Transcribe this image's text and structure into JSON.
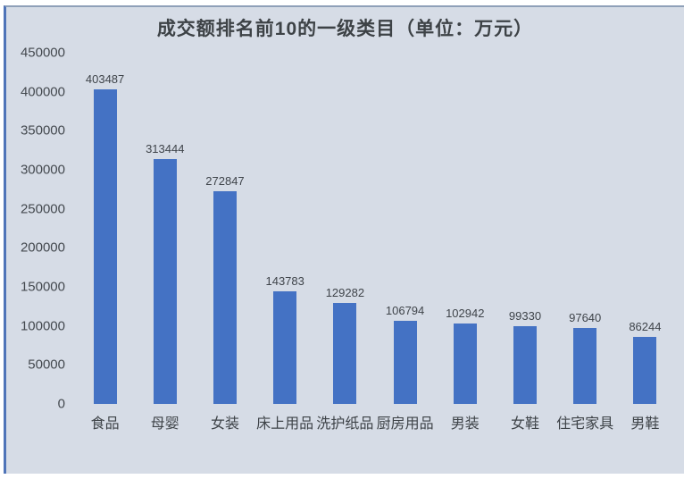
{
  "page": {
    "background": "#FFFFFF"
  },
  "panel": {
    "background": "#D6DCE6",
    "border_left_color": "#4F74B8",
    "border_top_color": "#8FA0B8"
  },
  "chart_data": {
    "type": "bar",
    "title": "成交额排名前10的一级类目（单位：万元）",
    "categories": [
      "食品",
      "母婴",
      "女装",
      "床上用品",
      "洗护纸品",
      "厨房用品",
      "男装",
      "女鞋",
      "住宅家具",
      "男鞋"
    ],
    "values": [
      403487,
      313444,
      272847,
      143783,
      129282,
      106794,
      102942,
      99330,
      97640,
      86244
    ],
    "data_labels": [
      "403487",
      "313444",
      "272847",
      "143783",
      "129282",
      "106794",
      "102942",
      "99330",
      "97640",
      "86244"
    ],
    "xlabel": "",
    "ylabel": "",
    "ylim": [
      0,
      450000
    ],
    "yticks": [
      450000,
      400000,
      350000,
      300000,
      250000,
      200000,
      150000,
      100000,
      50000,
      0
    ],
    "ytick_labels": [
      "450000",
      "400000",
      "350000",
      "300000",
      "250000",
      "200000",
      "150000",
      "100000",
      "50000",
      "0"
    ],
    "grid": false,
    "legend": false,
    "data_labels_shown": true,
    "bar_color": "#4472C4",
    "text_color": "#3E4348",
    "plot_background": "#D6DCE6"
  }
}
